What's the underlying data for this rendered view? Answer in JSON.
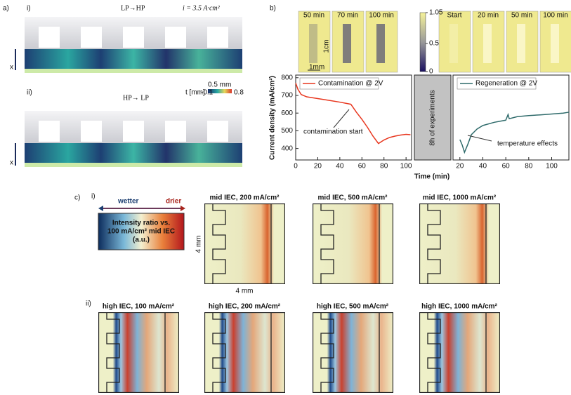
{
  "panel_a": {
    "label": "a)",
    "sub_i": "i)",
    "title_i": "LP→HP",
    "current": "i = 3.5 A·cm²",
    "sub_ii": "ii)",
    "title_ii": "HP→ LP",
    "colorbar_label": "t [mm]",
    "colorbar_min": "-0.1",
    "colorbar_max": "0.8",
    "scale": "0.5 mm",
    "axis": "x"
  },
  "panel_b": {
    "label": "b)",
    "contamination_images": [
      "50 min",
      "70 min",
      "100 min"
    ],
    "regeneration_images": [
      "Start",
      "20 min",
      "50 min",
      "100 min"
    ],
    "colorbar_ticks": [
      1.05,
      0.5,
      0
    ],
    "scale_1": "1cm",
    "scale_2": "1mm",
    "gap": "8h of experiments",
    "x_label": "Time (min)",
    "y_label": "Current density (mA/cm²)"
  },
  "chart_data": [
    {
      "type": "line",
      "annotation": "contamination start",
      "x": [
        0,
        2,
        5,
        10,
        20,
        30,
        40,
        50,
        55,
        60,
        65,
        70,
        75,
        80,
        85,
        90,
        95,
        100,
        104
      ],
      "series": [
        {
          "name": "Contamination @ 2V",
          "color": "#e8371f",
          "values": [
            770,
            735,
            705,
            692,
            682,
            672,
            662,
            650,
            605,
            565,
            520,
            470,
            428,
            448,
            462,
            470,
            476,
            480,
            478
          ]
        }
      ],
      "xlim": [
        0,
        105
      ],
      "ylim": [
        335,
        815
      ],
      "xticks": [
        0,
        20,
        40,
        60,
        80,
        100
      ],
      "yticks": [
        400,
        500,
        600,
        700,
        800
      ]
    },
    {
      "type": "line",
      "annotation": "temperature effects",
      "x": [
        20,
        22,
        24,
        27,
        30,
        35,
        40,
        50,
        60,
        62,
        63,
        70,
        80,
        90,
        100,
        110,
        115
      ],
      "series": [
        {
          "name": "Regeneration @ 2V",
          "color": "#2f6b6b",
          "values": [
            450,
            420,
            378,
            425,
            478,
            510,
            530,
            548,
            560,
            592,
            568,
            580,
            586,
            590,
            595,
            600,
            605
          ]
        }
      ],
      "xlim": [
        14,
        115
      ],
      "ylim": [
        335,
        815
      ],
      "xticks": [
        20,
        40,
        60,
        80,
        100
      ]
    }
  ],
  "panel_c": {
    "label": "c)",
    "sub_i": "i)",
    "wetter": "wetter",
    "drier": "drier",
    "legend_lines": [
      "Intensity ratio vs.",
      "100 mA/cm² mid IEC",
      "(a.u.)"
    ],
    "row_i": [
      "mid IEC, 200 mA/cm²",
      "mid IEC, 500 mA/cm²",
      "mid IEC, 1000 mA/cm²"
    ],
    "sub_ii": "ii)",
    "row_ii": [
      "high IEC, 100 mA/cm²",
      "high IEC, 200 mA/cm²",
      "high IEC, 500 mA/cm²",
      "high IEC, 1000 mA/cm²"
    ],
    "dim_v": "4 mm",
    "dim_h": "4 mm"
  }
}
